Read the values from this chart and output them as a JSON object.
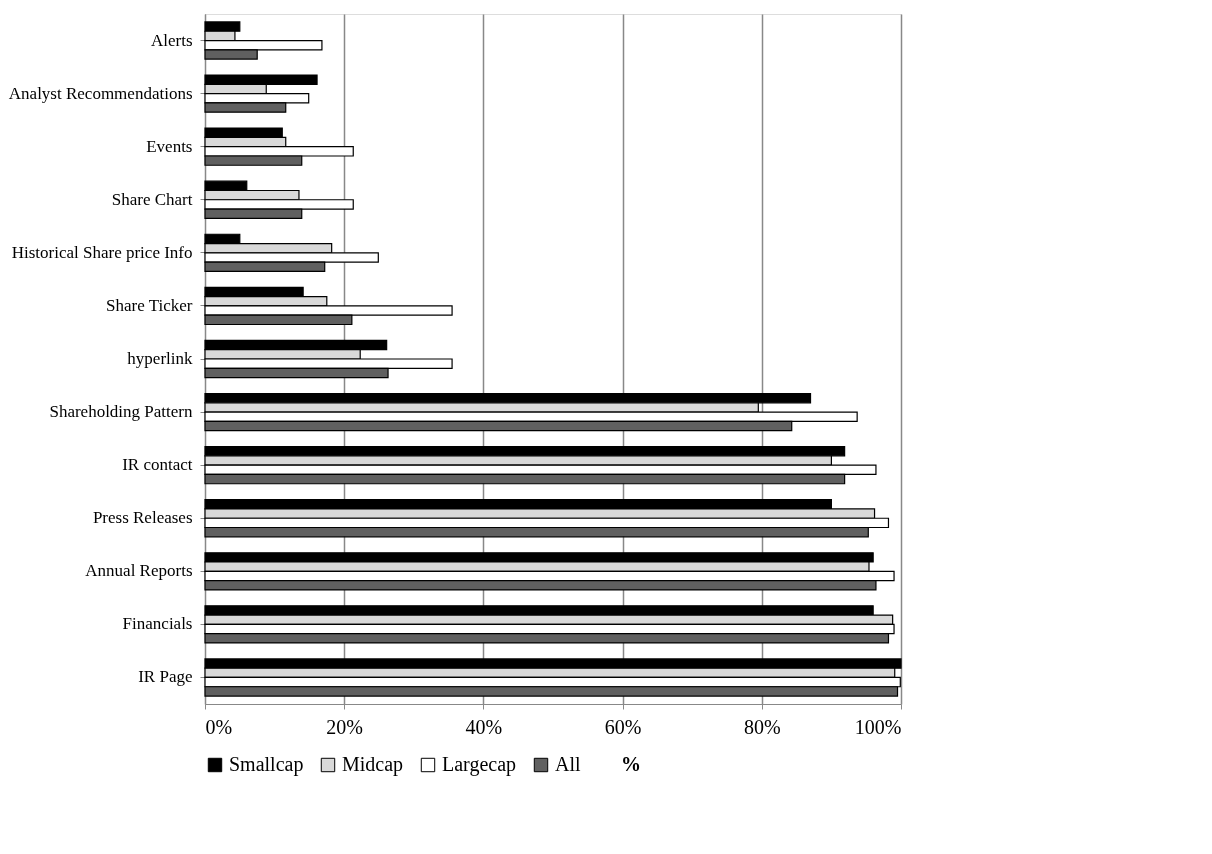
{
  "chart_data": {
    "type": "bar",
    "orientation": "horizontal",
    "legend_title": "%",
    "categories": [
      "Alerts",
      "Analyst Recommendations",
      "Events",
      "Share Chart",
      "Historical Share price Info",
      "Share Ticker",
      "hyperlink",
      "Shareholding Pattern",
      "IR contact",
      "Press Releases",
      "Annual Reports",
      "Financials",
      "IR Page"
    ],
    "series": [
      {
        "name": "Smallcap",
        "color": "#000000",
        "values": [
          5.0,
          16.1,
          11.1,
          6.0,
          5.0,
          14.1,
          26.1,
          87.0,
          91.9,
          90.0,
          96.0,
          96.0,
          100
        ]
      },
      {
        "name": "Midcap",
        "color": "#d9d9d9",
        "values": [
          4.3,
          8.8,
          11.6,
          13.5,
          18.2,
          17.5,
          22.3,
          79.5,
          90.0,
          96.2,
          95.4,
          98.8,
          99.1
        ]
      },
      {
        "name": "Largecap",
        "color": "#ffffff",
        "values": [
          16.8,
          14.9,
          21.3,
          21.3,
          24.9,
          35.5,
          35.5,
          93.7,
          96.4,
          98.2,
          99.0,
          99.0,
          99.9
        ]
      },
      {
        "name": "All",
        "color": "#606060",
        "values": [
          7.5,
          11.6,
          13.9,
          13.9,
          17.2,
          21.1,
          26.3,
          84.3,
          91.9,
          95.3,
          96.4,
          98.2,
          99.5
        ]
      }
    ],
    "xlim": [
      0,
      100
    ],
    "xticks": [
      {
        "value": 0,
        "label": "0%"
      },
      {
        "value": 20,
        "label": "20%"
      },
      {
        "value": 40,
        "label": "40%"
      },
      {
        "value": 60,
        "label": "60%"
      },
      {
        "value": 80,
        "label": "80%"
      },
      {
        "value": 100,
        "label": "100%"
      }
    ],
    "grid": "x",
    "legend": "bottom"
  }
}
